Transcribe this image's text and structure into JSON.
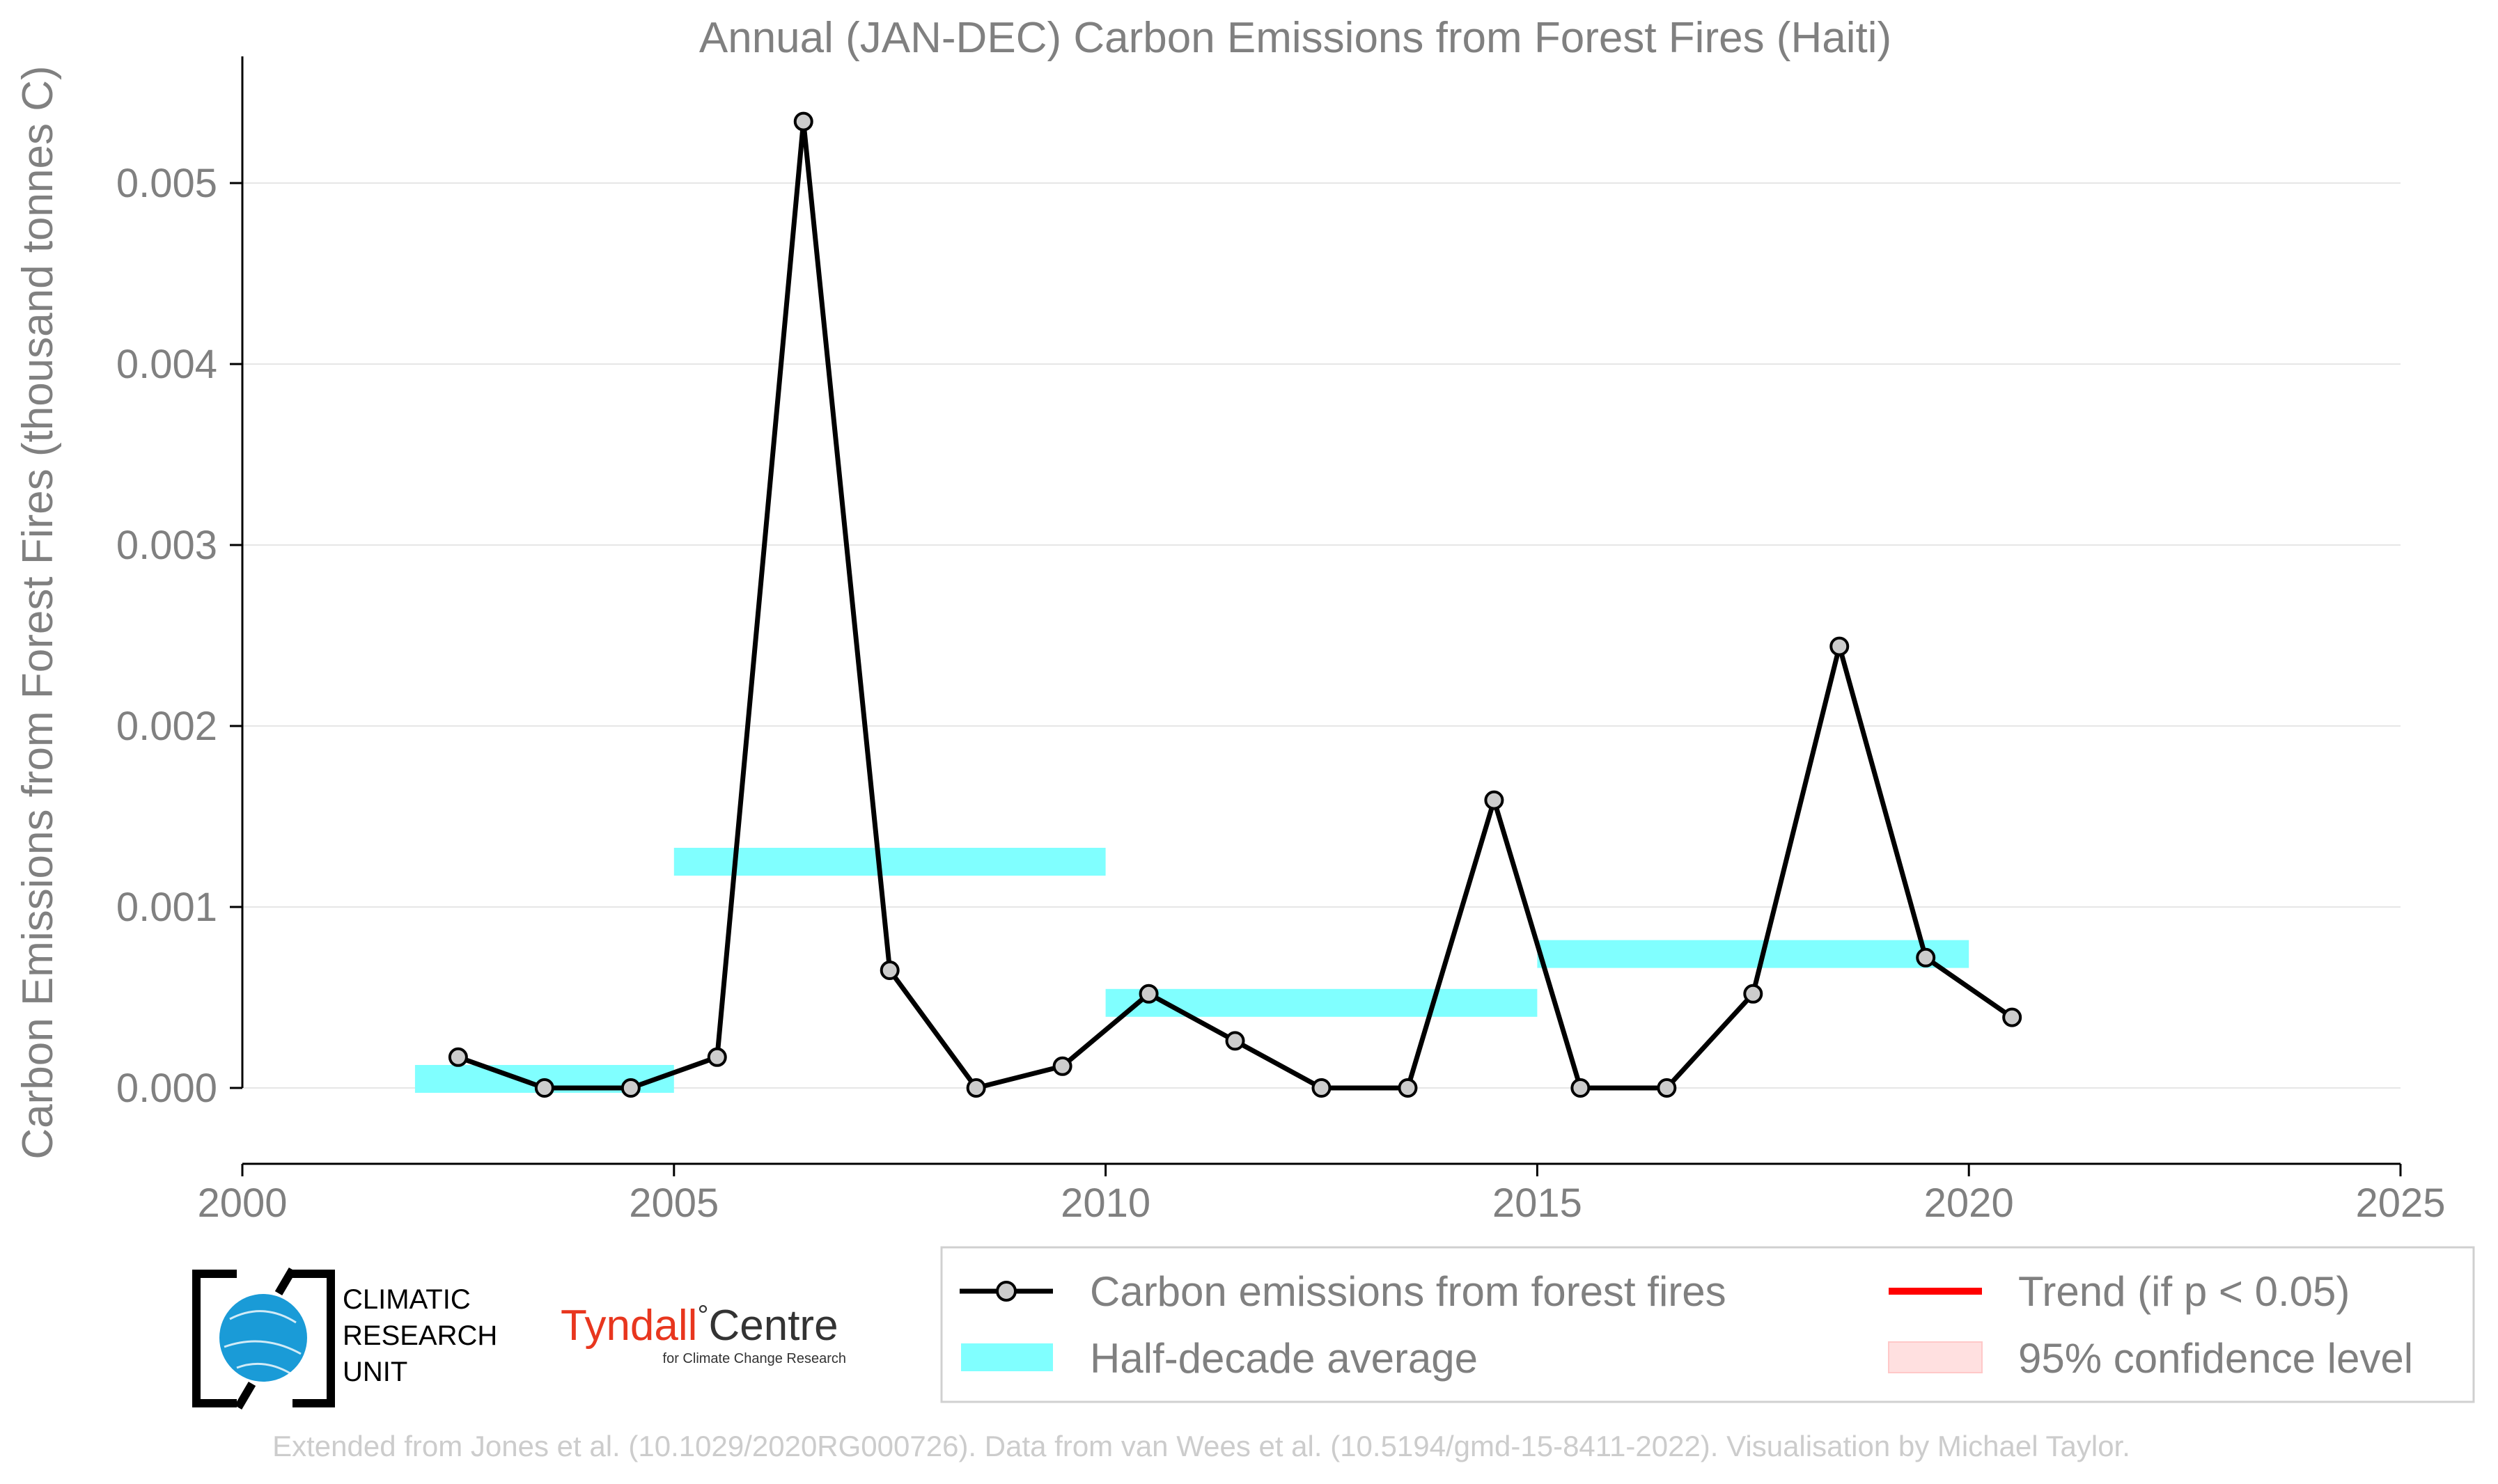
{
  "chart_data": {
    "type": "line",
    "title": "Annual (JAN-DEC) Carbon Emissions from Forest Fires (Haiti)",
    "ylabel": "Carbon Emissions from Forest Fires (thousand tonnes C)",
    "xlabel": "",
    "xlim": [
      2000,
      2025
    ],
    "ylim": [
      -0.00042,
      0.0057
    ],
    "x_ticks": [
      2000,
      2005,
      2010,
      2015,
      2020,
      2025
    ],
    "x_tick_labels": [
      "2000",
      "2005",
      "2010",
      "2015",
      "2020",
      "2025"
    ],
    "y_ticks": [
      0.0,
      0.001,
      0.002,
      0.003,
      0.004,
      0.005
    ],
    "y_tick_labels": [
      "0.000",
      "0.001",
      "0.002",
      "0.003",
      "0.004",
      "0.005"
    ],
    "grid": "horizontal",
    "series": [
      {
        "name": "Carbon emissions from forest fires",
        "x": [
          2002.5,
          2003.5,
          2004.5,
          2005.5,
          2006.5,
          2007.5,
          2008.5,
          2009.5,
          2010.5,
          2011.5,
          2012.5,
          2013.5,
          2014.5,
          2015.5,
          2016.5,
          2017.5,
          2018.5,
          2019.5,
          2020.5
        ],
        "values": [
          0.00017,
          0.0,
          0.0,
          0.00017,
          0.00534,
          0.00065,
          0.0,
          0.00012,
          0.00052,
          0.00026,
          0.0,
          0.0,
          0.00159,
          0.0,
          0.0,
          0.00052,
          0.00244,
          0.00072,
          0.00039
        ],
        "color": "#000000"
      }
    ],
    "half_decade_average": {
      "name": "Half-decade average",
      "color": "#80ffff",
      "segments": [
        {
          "x_start": 2002,
          "x_end": 2005,
          "value": 5e-05
        },
        {
          "x_start": 2005,
          "x_end": 2010,
          "value": 0.00125
        },
        {
          "x_start": 2010,
          "x_end": 2015,
          "value": 0.00047
        },
        {
          "x_start": 2015,
          "x_end": 2020,
          "value": 0.00074
        }
      ]
    },
    "legend": {
      "placement": "bottom-right",
      "entries": [
        {
          "label": "Carbon emissions from forest fires",
          "kind": "line-marker",
          "color": "#000000"
        },
        {
          "label": "Trend (if p < 0.05)",
          "kind": "line",
          "color": "#ff0000"
        },
        {
          "label": "Half-decade average",
          "kind": "patch",
          "color": "#80ffff"
        },
        {
          "label": "95% confidence level",
          "kind": "patch",
          "color": "#ffe0e0"
        }
      ]
    }
  },
  "logos": {
    "cru_lines": [
      "CLIMATIC",
      "RESEARCH",
      "UNIT"
    ],
    "tyndall_name": "Tyndall",
    "tyndall_degree": "°",
    "tyndall_centre": "Centre",
    "tyndall_sub": "for Climate Change Research",
    "tyndall_color": "#e8361e"
  },
  "credit": "Extended from Jones et al. (10.1029/2020RG000726). Data from van Wees et al. (10.5194/gmd-15-8411-2022). Visualisation by Michael Taylor."
}
